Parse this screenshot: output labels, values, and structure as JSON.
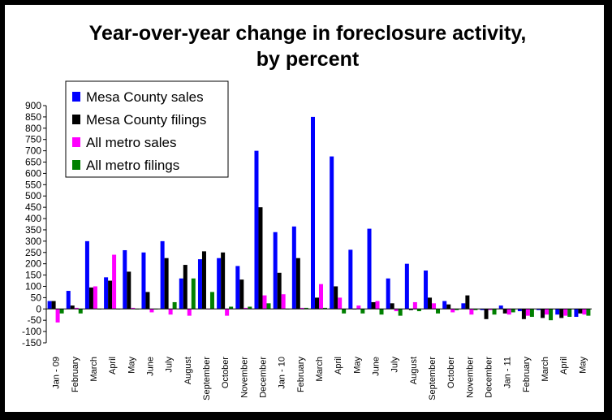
{
  "chart_data": {
    "type": "bar",
    "title": "Year-over-year change in foreclosure activity,",
    "subtitle": "by percent",
    "xlabel": "",
    "ylabel": "",
    "ylim": [
      -150,
      900
    ],
    "yticks": [
      900,
      850,
      800,
      750,
      700,
      650,
      600,
      550,
      500,
      450,
      400,
      350,
      300,
      250,
      200,
      150,
      100,
      50,
      0,
      -50,
      -100,
      -150
    ],
    "grid": false,
    "legend_position": "top-left",
    "categories": [
      "Jan - 09",
      "February",
      "March",
      "April",
      "May",
      "June",
      "July",
      "August",
      "September",
      "October",
      "November",
      "December",
      "Jan - 10",
      "February",
      "March",
      "April",
      "May",
      "June",
      "July",
      "August",
      "September",
      "October",
      "November",
      "December",
      "Jan - 11",
      "February",
      "March",
      "April",
      "May"
    ],
    "series": [
      {
        "name": "Mesa County sales",
        "color": "#0000FF",
        "values": [
          35,
          80,
          300,
          140,
          260,
          250,
          300,
          135,
          220,
          225,
          190,
          700,
          340,
          365,
          850,
          675,
          262,
          355,
          135,
          200,
          170,
          35,
          25,
          -5,
          15,
          -10,
          -5,
          -25,
          -35
        ]
      },
      {
        "name": "Mesa County filings",
        "color": "#000000",
        "values": [
          35,
          15,
          95,
          125,
          165,
          75,
          225,
          195,
          255,
          250,
          130,
          450,
          160,
          225,
          50,
          100,
          0,
          30,
          25,
          -5,
          50,
          20,
          60,
          -45,
          -20,
          -45,
          -40,
          -40,
          -20
        ]
      },
      {
        "name": "All metro sales",
        "color": "#FF00FF",
        "values": [
          -60,
          5,
          100,
          240,
          5,
          -15,
          -25,
          -30,
          0,
          -30,
          5,
          60,
          65,
          5,
          110,
          50,
          15,
          35,
          -10,
          30,
          25,
          -15,
          -25,
          -5,
          -25,
          -30,
          -25,
          -30,
          -25
        ]
      },
      {
        "name": "All metro filings",
        "color": "#008000",
        "values": [
          -20,
          -20,
          0,
          0,
          0,
          0,
          30,
          135,
          75,
          10,
          10,
          25,
          0,
          5,
          5,
          -20,
          -20,
          -25,
          -30,
          -10,
          -20,
          -5,
          -5,
          -25,
          -15,
          -35,
          -50,
          -35,
          -30
        ]
      }
    ]
  }
}
